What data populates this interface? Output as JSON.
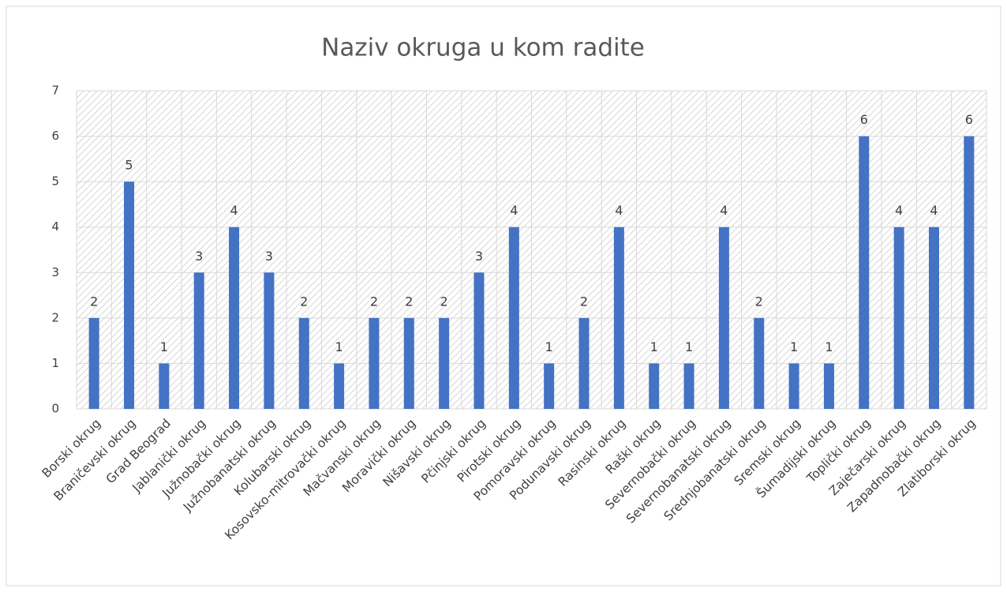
{
  "chart_data": {
    "type": "bar",
    "title": "Naziv okruga u kom radite",
    "categories": [
      "Borski okrug",
      "Braničevski okrug",
      "Grad Beograd",
      "Jablanički okrug",
      "Južnobački okrug",
      "Južnobanatski okrug",
      "Kolubarski okrug",
      "Kosovsko-mitrovački okrug",
      "Mačvanski okrug",
      "Moravički okrug",
      "Nišavski okrug",
      "Pčinjski okrug",
      "Pirotski okrug",
      "Pomoravski okrug",
      "Podunavski okrug",
      "Rasinski okrug",
      "Raški okrug",
      "Severnobački okrug",
      "Severnobanatski okrug",
      "Srednjobanatski okrug",
      "Sremski okrug",
      "Šumadijski okrug",
      "Toplički okrug",
      "Zaječarski okrug",
      "Zapadnobački  okrug",
      "Zlatiborski okrug"
    ],
    "values": [
      2,
      5,
      1,
      3,
      4,
      3,
      2,
      1,
      2,
      2,
      2,
      3,
      4,
      1,
      2,
      4,
      1,
      1,
      4,
      2,
      1,
      1,
      6,
      4,
      4,
      6
    ],
    "color": "#4472c4",
    "ylim": [
      0,
      7
    ],
    "yticks": [
      0,
      1,
      2,
      3,
      4,
      5,
      6,
      7
    ],
    "grid": true
  }
}
